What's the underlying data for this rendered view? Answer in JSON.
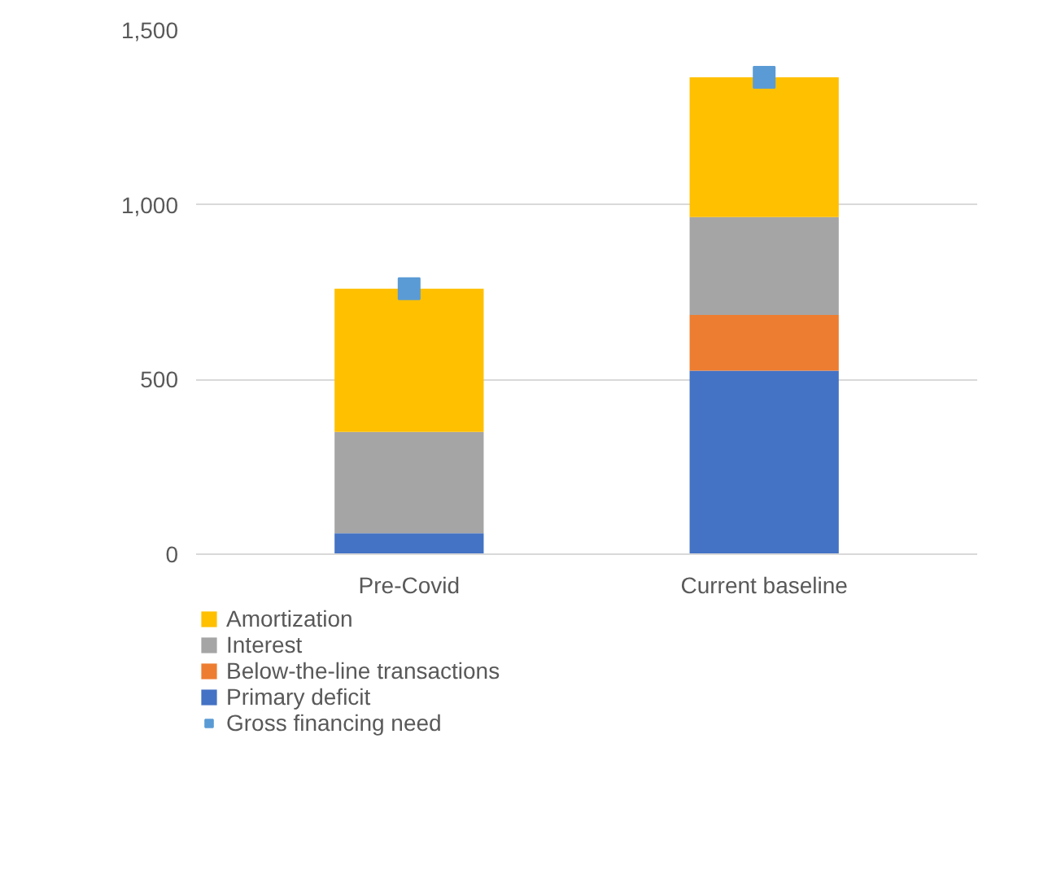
{
  "chart_data": {
    "type": "bar",
    "stacked": true,
    "categories": [
      "Pre-Covid",
      "Current baseline"
    ],
    "series": [
      {
        "name": "Primary deficit",
        "color": "#4472c4",
        "values": [
          60,
          525
        ]
      },
      {
        "name": "Below-the-line transactions",
        "color": "#ed7d31",
        "values": [
          0,
          160
        ]
      },
      {
        "name": "Interest",
        "color": "#a5a5a5",
        "values": [
          290,
          280
        ]
      },
      {
        "name": "Amortization",
        "color": "#ffc000",
        "values": [
          410,
          400
        ]
      },
      {
        "name": "Gross financing need",
        "type": "scatter",
        "marker": "square",
        "color": "#5b9bd5",
        "values": [
          760,
          1365
        ]
      }
    ],
    "ylim": [
      0,
      1500
    ],
    "yticks": [
      {
        "value": 0,
        "label": "0"
      },
      {
        "value": 500,
        "label": "500"
      },
      {
        "value": 1000,
        "label": "1,000"
      },
      {
        "value": 1500,
        "label": "1,500"
      }
    ],
    "grid": "y",
    "legend": "bottom"
  }
}
